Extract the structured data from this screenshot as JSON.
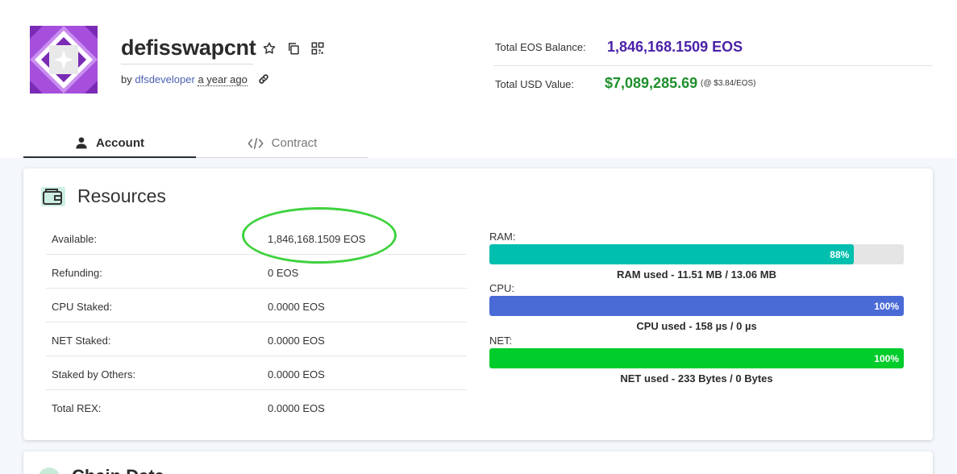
{
  "account": {
    "name": "defisswapcnt",
    "by_prefix": "by",
    "creator": "dfsdeveloper",
    "created_ago": "a year ago"
  },
  "balance": {
    "eos_label": "Total EOS Balance:",
    "eos_value": "1,846,168.1509 EOS",
    "usd_label": "Total USD Value:",
    "usd_value": "$7,089,285.69",
    "usd_rate": "(@ $3.84/EOS)"
  },
  "tabs": [
    {
      "label": "Account",
      "active": true
    },
    {
      "label": "Contract",
      "active": false
    }
  ],
  "resources": {
    "title": "Resources",
    "rows": [
      {
        "label": "Available:",
        "value": "1,846,168.1509 EOS"
      },
      {
        "label": "Refunding:",
        "value": "0 EOS"
      },
      {
        "label": "CPU Staked:",
        "value": "0.0000 EOS"
      },
      {
        "label": "NET Staked:",
        "value": "0.0000 EOS"
      },
      {
        "label": "Staked by Others:",
        "value": "0.0000 EOS"
      },
      {
        "label": "Total REX:",
        "value": "0.0000 EOS"
      }
    ],
    "bars": [
      {
        "label": "RAM:",
        "percent": 88,
        "percent_text": "88%",
        "color": "#00bfae",
        "caption": "RAM used - 11.51 MB / 13.06 MB"
      },
      {
        "label": "CPU:",
        "percent": 100,
        "percent_text": "100%",
        "color": "#4a6bd6",
        "caption": "CPU used - 158 µs / 0 µs"
      },
      {
        "label": "NET:",
        "percent": 100,
        "percent_text": "100%",
        "color": "#00cc2c",
        "caption": "NET used - 233 Bytes / 0 Bytes"
      }
    ]
  },
  "next_card": {
    "title_fragment": "Chain Data"
  },
  "colors": {
    "eos_balance": "#4b21a8",
    "usd_balance": "#1e8f2b",
    "avatar_purple": "#a64fdc",
    "highlight": "#3fd23f"
  },
  "icons": [
    "star-icon",
    "copy-icon",
    "qr-code-icon",
    "link-icon",
    "user-icon",
    "code-icon",
    "wallet-icon"
  ]
}
